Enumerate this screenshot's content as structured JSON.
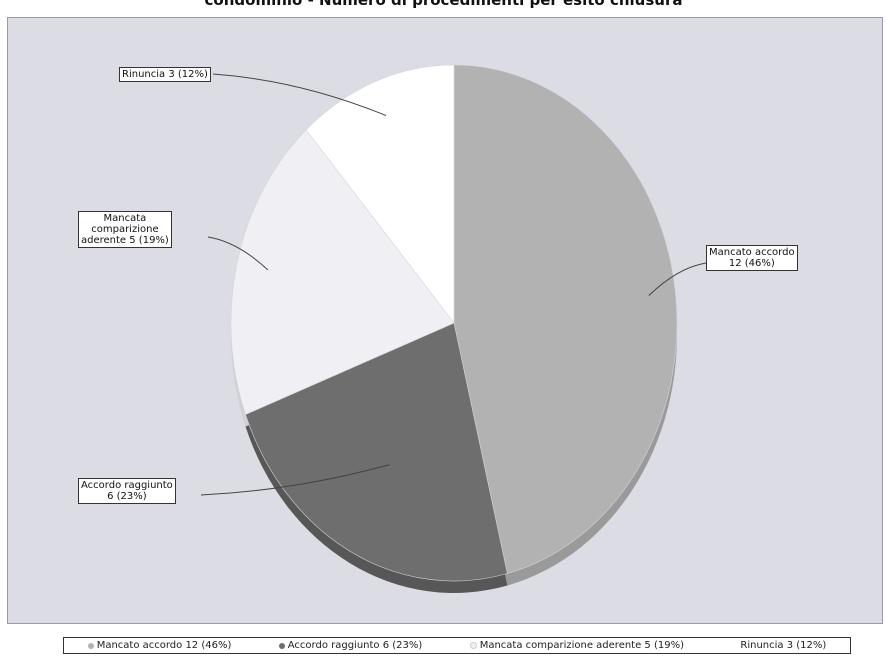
{
  "title": "condominio - Numero di procedimenti per esito chiusura",
  "chart_data": {
    "type": "pie",
    "slices": [
      {
        "label": "Mancato accordo",
        "value": 12,
        "percent": 46,
        "color": "#b2b2b2",
        "side_color": "#9a9a9a",
        "label_text": "Mancato accordo\n12 (46%)",
        "legend_text": "Mancato accordo 12 (46%)"
      },
      {
        "label": "Accordo raggiunto",
        "value": 6,
        "percent": 23,
        "color": "#6e6e6e",
        "side_color": "#575757",
        "label_text": "Accordo raggiunto\n6 (23%)",
        "legend_text": "Accordo raggiunto 6 (23%)"
      },
      {
        "label": "Mancata comparizione aderente",
        "value": 5,
        "percent": 19,
        "color": "#f0f0f4",
        "side_color": "#d0d0d6",
        "label_text": "Mancata\ncomparizione\naderente 5 (19%)",
        "legend_text": "Mancata comparizione aderente 5 (19%)"
      },
      {
        "label": "Rinuncia",
        "value": 3,
        "percent": 12,
        "color": "#ffffff",
        "side_color": "#e2e2e6",
        "label_text": "Rinuncia 3 (12%)",
        "legend_text": "Rinuncia 3 (12%)"
      }
    ],
    "legend_position": "bottom"
  }
}
